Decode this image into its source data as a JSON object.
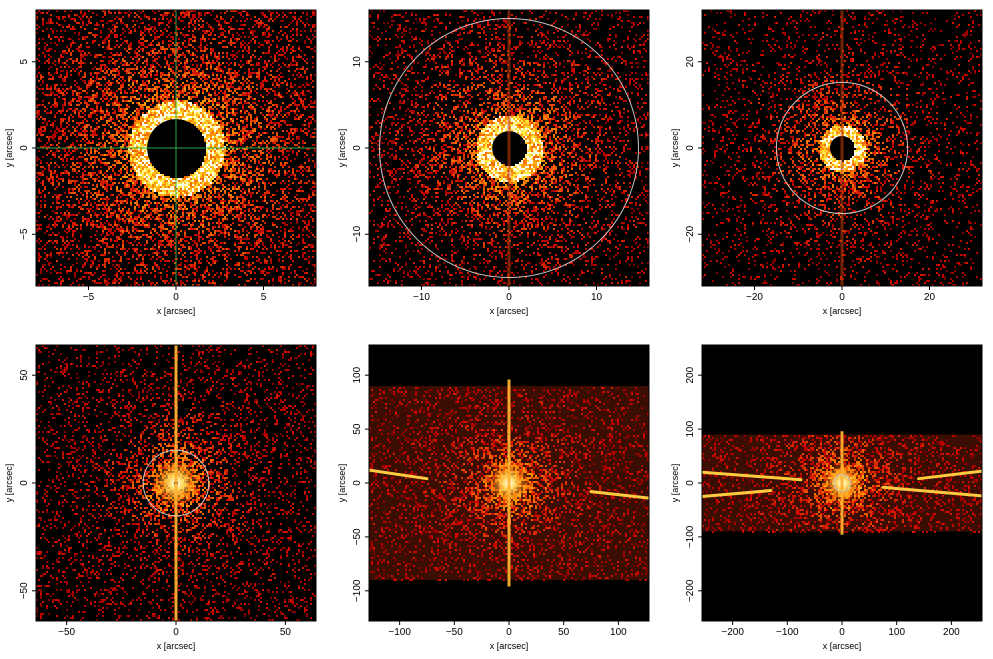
{
  "figure": {
    "panels": [
      {
        "xlabel": "x [arcsec]",
        "ylabel": "y [arcsec]",
        "xlim": [
          -8,
          8
        ],
        "ylim": [
          -8,
          8
        ],
        "xticks": [
          -5,
          0,
          5
        ],
        "yticks": [
          -5,
          0,
          5
        ],
        "circle_radius": null,
        "crosshair": true,
        "bright_ring": true,
        "center_hole": 1.2,
        "halo_scale": 2.5,
        "bars": [],
        "vertical_streak": false,
        "bg_strength": 0.45
      },
      {
        "xlabel": "x [arcsec]",
        "ylabel": "y [arcsec]",
        "xlim": [
          -16,
          16
        ],
        "ylim": [
          -16,
          16
        ],
        "xticks": [
          -10,
          0,
          10
        ],
        "yticks": [
          -10,
          0,
          10
        ],
        "circle_radius": 14.8,
        "crosshair": false,
        "bright_ring": true,
        "center_hole": 1.0,
        "halo_scale": 3.5,
        "bars": [],
        "vertical_streak": true,
        "bg_strength": 0.35
      },
      {
        "xlabel": "x [arcsec]",
        "ylabel": "y [arcsec]",
        "xlim": [
          -32,
          32
        ],
        "ylim": [
          -32,
          32
        ],
        "xticks": [
          -20,
          0,
          20
        ],
        "yticks": [
          -20,
          0,
          20
        ],
        "circle_radius": 15,
        "crosshair": false,
        "bright_ring": true,
        "center_hole": 1.0,
        "halo_scale": 5,
        "bars": [],
        "vertical_streak": true,
        "bg_strength": 0.3
      },
      {
        "xlabel": "x [arcsec]",
        "ylabel": "y [arcsec]",
        "xlim": [
          -64,
          64
        ],
        "ylim": [
          -64,
          64
        ],
        "xticks": [
          -50,
          0,
          50
        ],
        "yticks": [
          -50,
          0,
          50
        ],
        "circle_radius": 15,
        "crosshair": false,
        "bright_ring": false,
        "center_hole": 0.8,
        "halo_scale": 9,
        "bars": [],
        "vertical_streak": true,
        "bg_strength": 0.45
      },
      {
        "xlabel": "x [arcsec]",
        "ylabel": "y [arcsec]",
        "xlim": [
          -128,
          128
        ],
        "ylim": [
          -128,
          128
        ],
        "xticks": [
          -100,
          -50,
          0,
          50,
          100
        ],
        "yticks": [
          -100,
          -50,
          0,
          50,
          100
        ],
        "circle_radius": null,
        "crosshair": false,
        "bright_ring": false,
        "center_hole": 0.0,
        "halo_scale": 16,
        "bars": [
          {
            "x1": -128,
            "y1": 12,
            "x2": -75,
            "y2": 4
          },
          {
            "x1": 75,
            "y1": -8,
            "x2": 128,
            "y2": -14
          }
        ],
        "vertical_streak": true,
        "band": [
          -90,
          90
        ],
        "bg_strength": 0.55
      },
      {
        "xlabel": "x [arcsec]",
        "ylabel": "y [arcsec]",
        "xlim": [
          -256,
          256
        ],
        "ylim": [
          -256,
          256
        ],
        "xticks": [
          -200,
          -100,
          0,
          100,
          200
        ],
        "yticks": [
          -200,
          -100,
          0,
          100,
          200
        ],
        "circle_radius": 15,
        "crosshair": false,
        "bright_ring": false,
        "center_hole": 0.0,
        "halo_scale": 30,
        "bars": [
          {
            "x1": -256,
            "y1": 20,
            "x2": -75,
            "y2": 6
          },
          {
            "x1": -256,
            "y1": -25,
            "x2": -130,
            "y2": -14
          },
          {
            "x1": 75,
            "y1": -8,
            "x2": 256,
            "y2": -24
          },
          {
            "x1": 140,
            "y1": 8,
            "x2": 256,
            "y2": 22
          }
        ],
        "vertical_streak": true,
        "band": [
          -90,
          90
        ],
        "bg_strength": 0.65
      }
    ]
  }
}
